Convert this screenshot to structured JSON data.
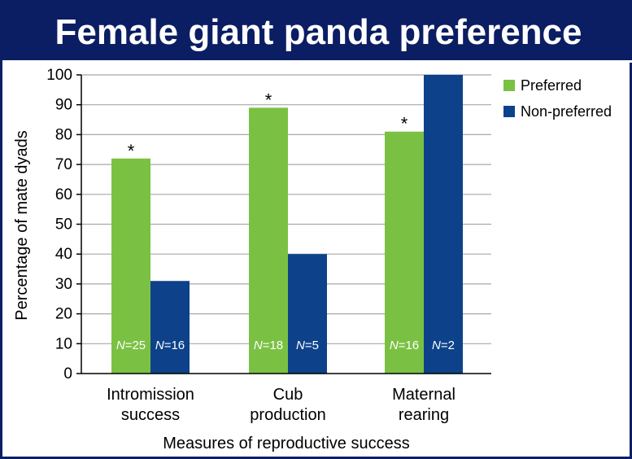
{
  "title": "Female giant panda preference",
  "chart_data": {
    "type": "bar",
    "categories": [
      [
        "Intromission",
        "success"
      ],
      [
        "Cub",
        "production"
      ],
      [
        "Maternal",
        "rearing"
      ]
    ],
    "series": [
      {
        "name": "Preferred",
        "color": "#7ac143",
        "values": [
          72,
          89,
          81
        ],
        "n_labels": [
          "N=25",
          "N=18",
          "N=16"
        ],
        "markers": [
          "*",
          "*",
          "*"
        ]
      },
      {
        "name": "Non-preferred",
        "color": "#0d428a",
        "values": [
          31,
          40,
          100
        ],
        "n_labels": [
          "N=16",
          "N=5",
          "N=2"
        ],
        "markers": [
          "",
          "",
          ""
        ]
      }
    ],
    "xlabel": "Measures of reproductive success",
    "ylabel": "Percentage of mate dyads",
    "ylim": [
      0,
      100
    ],
    "yticks": [
      0,
      10,
      20,
      30,
      40,
      50,
      60,
      70,
      80,
      90,
      100
    ],
    "grid": true,
    "legend_position": "right"
  }
}
